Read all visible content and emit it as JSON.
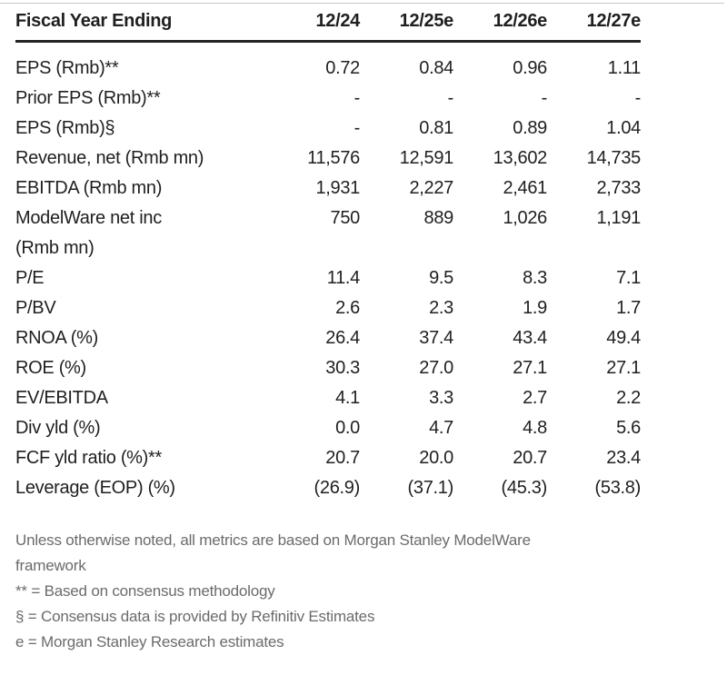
{
  "table": {
    "header": {
      "title": "Fiscal Year Ending",
      "columns": [
        "12/24",
        "12/25e",
        "12/26e",
        "12/27e"
      ]
    },
    "rows": [
      {
        "label": "EPS (Rmb)**",
        "values": [
          "0.72",
          "0.84",
          "0.96",
          "1.11"
        ]
      },
      {
        "label": "Prior EPS (Rmb)**",
        "values": [
          "-",
          "-",
          "-",
          "-"
        ]
      },
      {
        "label": "EPS (Rmb)§",
        "values": [
          "-",
          "0.81",
          "0.89",
          "1.04"
        ]
      },
      {
        "label": "Revenue, net (Rmb mn)",
        "values": [
          "11,576",
          "12,591",
          "13,602",
          "14,735"
        ]
      },
      {
        "label": "EBITDA (Rmb mn)",
        "values": [
          "1,931",
          "2,227",
          "2,461",
          "2,733"
        ]
      },
      {
        "label": "ModelWare net inc\n(Rmb mn)",
        "values": [
          "750",
          "889",
          "1,026",
          "1,191"
        ]
      },
      {
        "label": "P/E",
        "values": [
          "11.4",
          "9.5",
          "8.3",
          "7.1"
        ]
      },
      {
        "label": "P/BV",
        "values": [
          "2.6",
          "2.3",
          "1.9",
          "1.7"
        ]
      },
      {
        "label": "RNOA (%)",
        "values": [
          "26.4",
          "37.4",
          "43.4",
          "49.4"
        ]
      },
      {
        "label": "ROE (%)",
        "values": [
          "30.3",
          "27.0",
          "27.1",
          "27.1"
        ]
      },
      {
        "label": "EV/EBITDA",
        "values": [
          "4.1",
          "3.3",
          "2.7",
          "2.2"
        ]
      },
      {
        "label": "Div yld (%)",
        "values": [
          "0.0",
          "4.7",
          "4.8",
          "5.6"
        ]
      },
      {
        "label": "FCF yld ratio (%)**",
        "values": [
          "20.7",
          "20.0",
          "20.7",
          "23.4"
        ]
      },
      {
        "label": "Leverage (EOP) (%)",
        "values": [
          "(26.9)",
          "(37.1)",
          "(45.3)",
          "(53.8)"
        ]
      }
    ]
  },
  "footnotes": [
    "Unless otherwise noted, all metrics are based on Morgan Stanley ModelWare\nframework",
    "** = Based on consensus methodology",
    "§ = Consensus data is provided by Refinitiv Estimates",
    "e = Morgan Stanley Research estimates"
  ],
  "colors": {
    "text": "#1f1f1f",
    "footnote_text": "#6b6b6b",
    "header_rule": "#242424",
    "top_rule": "#c9c9c9",
    "background": "#ffffff"
  }
}
